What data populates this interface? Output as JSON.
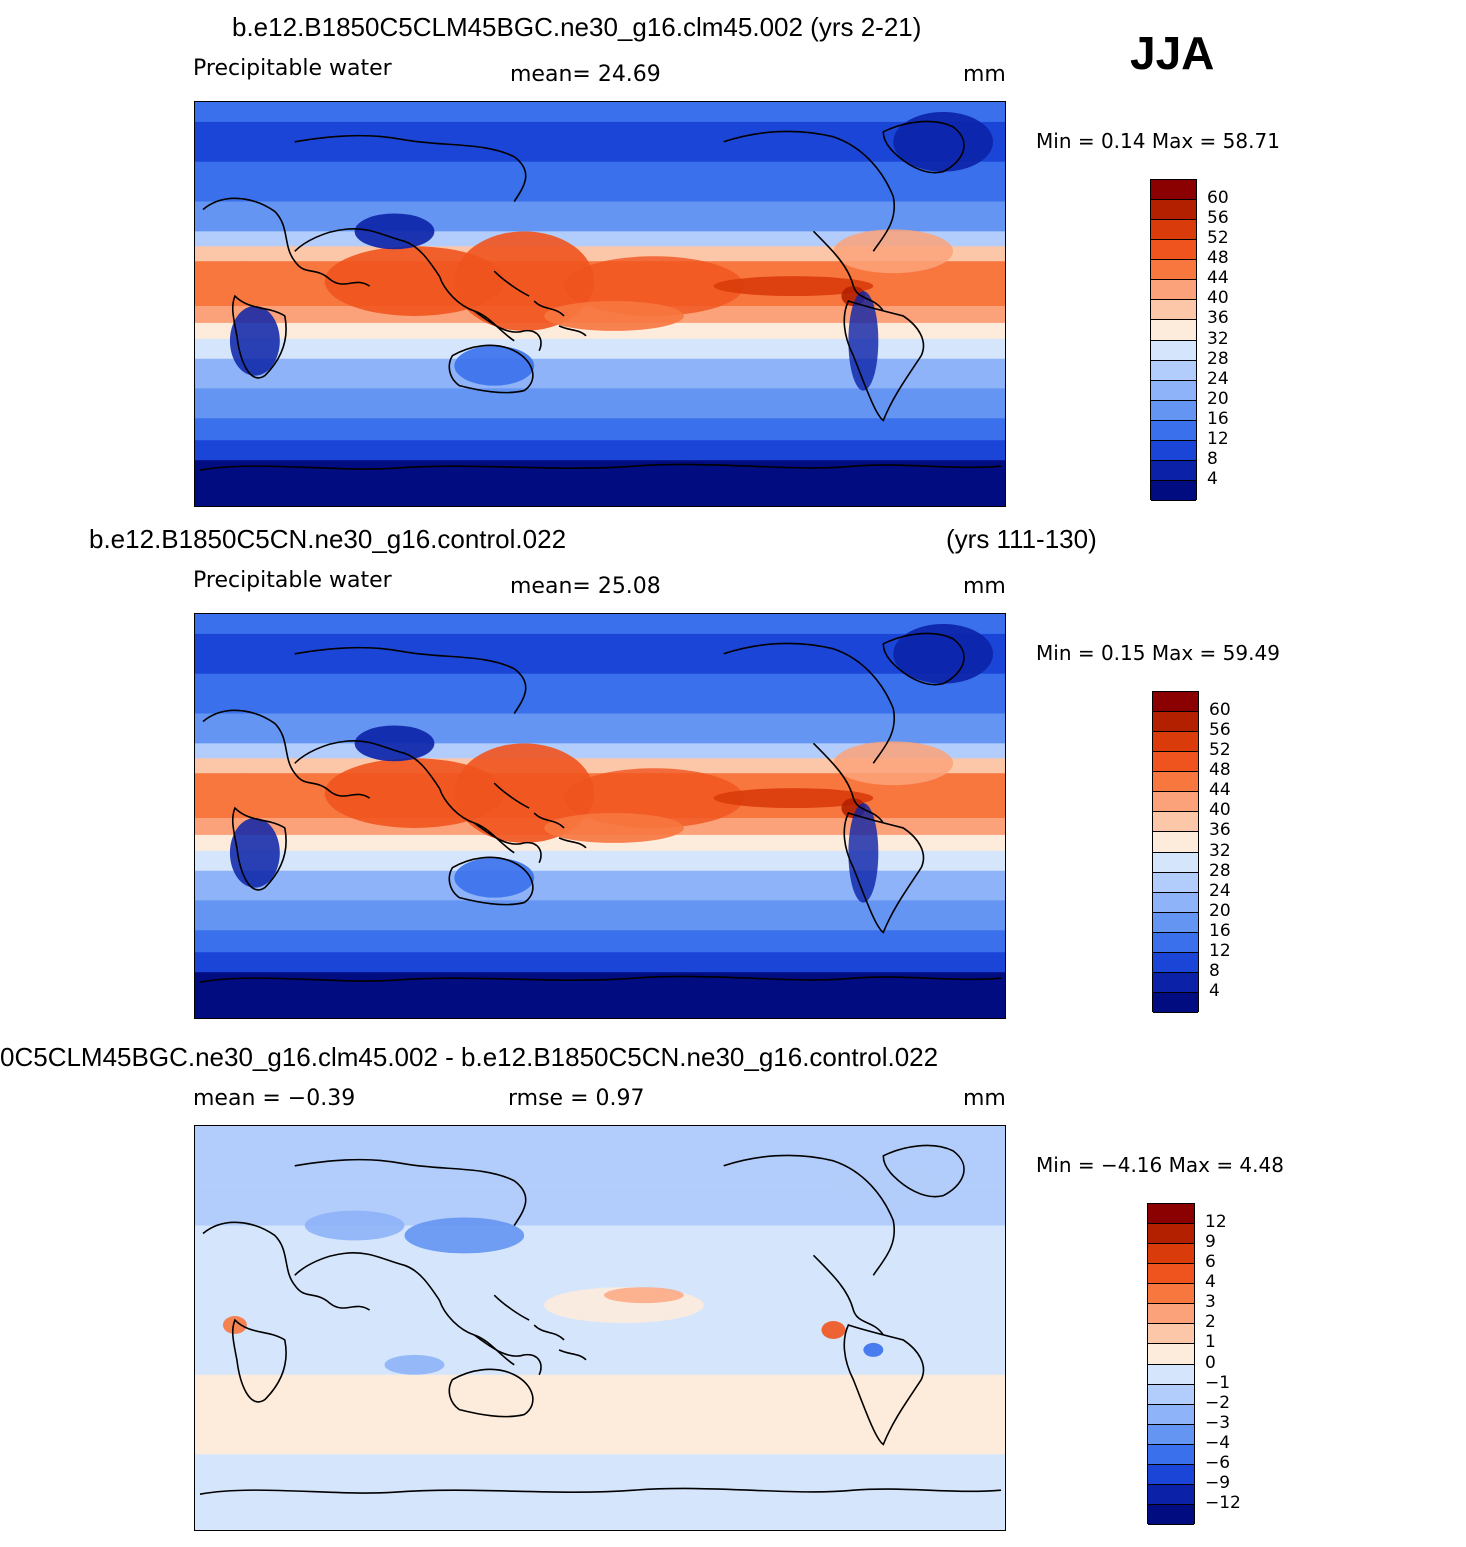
{
  "season": "JJA",
  "panels": [
    {
      "id": "p1",
      "title": "b.e12.B1850C5CLM45BGC.ne30_g16.clm45.002 (yrs 2-21)",
      "title2": "",
      "left_label": "Precipitable  water",
      "mid_label": "mean=   24.69",
      "mid_label2": "",
      "units": "mm",
      "min_max": "Min  =     0.14  Max  =    58.71",
      "colorbar": {
        "labels": [
          "60",
          "56",
          "52",
          "48",
          "44",
          "40",
          "36",
          "32",
          "28",
          "24",
          "20",
          "16",
          "12",
          "8",
          "4"
        ],
        "colors": [
          "#8b0000",
          "#b22000",
          "#d93b0a",
          "#f0541e",
          "#f7773f",
          "#fca27a",
          "#fcc7a8",
          "#fdebdb",
          "#d5e6fc",
          "#b2cdfb",
          "#8eb3f8",
          "#6495f2",
          "#3a70ec",
          "#1a45d6",
          "#0b22a8",
          "#000c80"
        ]
      },
      "map_fill": "precip"
    },
    {
      "id": "p2",
      "title": "b.e12.B1850C5CN.ne30_g16.control.022",
      "title2": "(yrs 111-130)",
      "left_label": "Precipitable  water",
      "mid_label": "mean=   25.08",
      "mid_label2": "",
      "units": "mm",
      "min_max": "Min  =     0.15  Max  =    59.49",
      "colorbar": {
        "labels": [
          "60",
          "56",
          "52",
          "48",
          "44",
          "40",
          "36",
          "32",
          "28",
          "24",
          "20",
          "16",
          "12",
          "8",
          "4"
        ],
        "colors": [
          "#8b0000",
          "#b22000",
          "#d93b0a",
          "#f0541e",
          "#f7773f",
          "#fca27a",
          "#fcc7a8",
          "#fdebdb",
          "#d5e6fc",
          "#b2cdfb",
          "#8eb3f8",
          "#6495f2",
          "#3a70ec",
          "#1a45d6",
          "#0b22a8",
          "#000c80"
        ]
      },
      "map_fill": "precip"
    },
    {
      "id": "p3",
      "title": "0C5CLM45BGC.ne30_g16.clm45.002 - b.e12.B1850C5CN.ne30_g16.control.022",
      "title2": "",
      "left_label": "mean  =    −0.39",
      "mid_label": "rmse  =      0.97",
      "mid_label2": "",
      "units": "mm",
      "min_max": "Min  =   −4.16  Max  =      4.48",
      "colorbar": {
        "labels": [
          "12",
          "9",
          "6",
          "4",
          "3",
          "2",
          "1",
          "0",
          "−1",
          "−2",
          "−3",
          "−4",
          "−6",
          "−9",
          "−12"
        ],
        "colors": [
          "#8b0000",
          "#b22000",
          "#d93b0a",
          "#f0541e",
          "#f7773f",
          "#fca27a",
          "#fcc7a8",
          "#fdebdb",
          "#d5e6fc",
          "#b2cdfb",
          "#8eb3f8",
          "#6495f2",
          "#3a70ec",
          "#1a45d6",
          "#0b22a8",
          "#000c80"
        ]
      },
      "map_fill": "diff"
    }
  ]
}
